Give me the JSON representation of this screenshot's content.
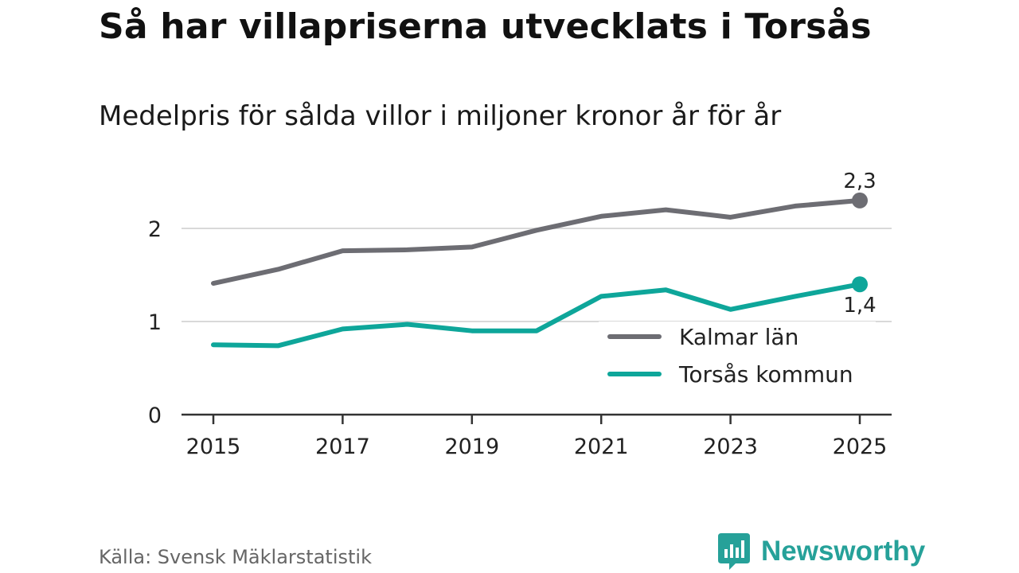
{
  "header": {
    "title": "Så har villapriserna utvecklats i Torsås",
    "subtitle": "Medelpris för sålda villor i miljoner kronor år för år"
  },
  "footer": {
    "source": "Källa: Svensk Mäklarstatistik",
    "brand": "Newsworthy"
  },
  "colors": {
    "kalmar": "#6d6d73",
    "torsas": "#0ea69a",
    "brand": "#26a199",
    "grid": "#d9d9d9",
    "axis": "#333333"
  },
  "chart_data": {
    "type": "line",
    "title": "Så har villapriserna utvecklats i Torsås",
    "subtitle": "Medelpris för sålda villor i miljoner kronor år för år",
    "xlabel": "",
    "ylabel": "",
    "x": [
      2015,
      2016,
      2017,
      2018,
      2019,
      2020,
      2021,
      2022,
      2023,
      2024,
      2025
    ],
    "xticks": [
      "2015",
      "2017",
      "2019",
      "2021",
      "2023",
      "2025"
    ],
    "yticks": [
      "0",
      "1",
      "2"
    ],
    "ylim": [
      0,
      2.45
    ],
    "grid": true,
    "legend": "bottom-right",
    "series": [
      {
        "name": "Kalmar län",
        "values": [
          1.41,
          1.56,
          1.76,
          1.77,
          1.8,
          1.98,
          2.13,
          2.2,
          2.12,
          2.24,
          2.3
        ],
        "end_label": "2,3"
      },
      {
        "name": "Torsås kommun",
        "values": [
          0.75,
          0.74,
          0.92,
          0.97,
          0.9,
          0.9,
          1.27,
          1.34,
          1.13,
          1.27,
          1.4
        ],
        "end_label": "1,4"
      }
    ]
  }
}
